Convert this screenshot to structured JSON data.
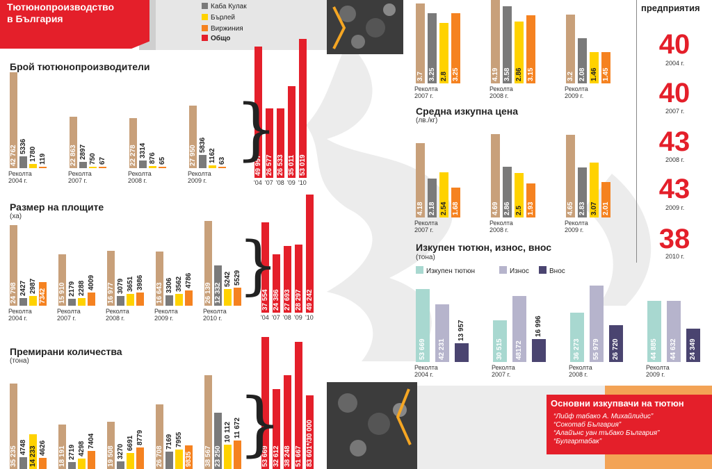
{
  "banner": {
    "title_line1": "Тютюнопроизводство",
    "title_line2": "в България"
  },
  "legend": {
    "items": [
      {
        "label": "Каба Кулак",
        "color": "#7a7a7a"
      },
      {
        "label": "Бърлей",
        "color": "#ffd200"
      },
      {
        "label": "Виржиния",
        "color": "#f58220"
      },
      {
        "label": "Общо",
        "color": "#e41f2a"
      }
    ]
  },
  "colors": {
    "total": "#c8a07a",
    "kaba": "#7a7a7a",
    "burley": "#ffd200",
    "virginia": "#f58220",
    "red": "#e41f2a",
    "bought": "#a8d8d0",
    "export": "#b6b4cc",
    "import": "#4a4470"
  },
  "section_titles": {
    "producers": "Брой тютюнопроизводители",
    "areas": "Размер на площите",
    "areas_unit": "(ха)",
    "premium": "Премирани количества",
    "premium_unit": "(тона)",
    "avg_price": "Средна изкупна цена",
    "avg_price_unit": "(лв./кг)",
    "trade": "Изкупен тютюн, износ, внос",
    "trade_unit": "(тона)",
    "enterprises": "предприятия"
  },
  "trade_legend": [
    "Изкупен тютюн",
    "Износ",
    "Внос"
  ],
  "enterprises": [
    {
      "value": "40",
      "year": "2004 г."
    },
    {
      "value": "40",
      "year": "2007 г."
    },
    {
      "value": "43",
      "year": "2008 г."
    },
    {
      "value": "43",
      "year": "2009 г."
    },
    {
      "value": "38",
      "year": "2010 г."
    }
  ],
  "buyers": {
    "title": "Основни изкупвачи на тютюн",
    "names": [
      "“Лийф табако А. Михайлидис”",
      "“Сокотаб България”",
      "“Алайънс уан тъбако България”",
      "“Булгартабак”"
    ]
  },
  "chart_data": [
    {
      "id": "producers",
      "type": "bar",
      "title": "Брой тютюнопроизводители",
      "categories": [
        [
          "Реколта",
          "2004 г."
        ],
        [
          "Реколта",
          "2007 г."
        ],
        [
          "Реколта",
          "2008 г."
        ],
        [
          "Реколта",
          "2009 г."
        ]
      ],
      "series": [
        {
          "key": "total",
          "values": [
            42762,
            22863,
            22278,
            27950
          ]
        },
        {
          "key": "kaba",
          "name": "Каба Кулак",
          "values": [
            5336,
            2897,
            3314,
            5836
          ]
        },
        {
          "key": "burley",
          "name": "Бърлей",
          "values": [
            1780,
            750,
            876,
            1162
          ]
        },
        {
          "key": "virginia",
          "name": "Виржиния",
          "values": [
            119,
            67,
            65,
            63
          ]
        }
      ],
      "labels": [
        [
          "42 762",
          "5336",
          "1780",
          "119"
        ],
        [
          "22 863",
          "2897",
          "750",
          "67"
        ],
        [
          "22 278",
          "3314",
          "876",
          "65"
        ],
        [
          "27 950",
          "5836",
          "1162",
          "63"
        ]
      ]
    },
    {
      "id": "producers_total",
      "type": "bar",
      "categories": [
        "'04",
        "'07",
        "'08",
        "'09",
        "'10"
      ],
      "values": [
        49997,
        26577,
        26533,
        35011,
        53019
      ],
      "labels": [
        "49 997",
        "26 577",
        "26 533",
        "35 011",
        "53 019"
      ]
    },
    {
      "id": "areas",
      "type": "bar",
      "title": "Размер на площите",
      "ylabel": "(ха)",
      "categories": [
        [
          "Реколта",
          "2004 г."
        ],
        [
          "Реколта",
          "2007 г."
        ],
        [
          "Реколта",
          "2008 г."
        ],
        [
          "Реколта",
          "2009 г."
        ],
        [
          "Реколта",
          "2010 г."
        ]
      ],
      "series": [
        {
          "key": "total",
          "values": [
            24798,
            15910,
            16977,
            16643,
            26139
          ]
        },
        {
          "key": "kaba",
          "name": "Каба Кулак",
          "values": [
            2427,
            2179,
            3079,
            3306,
            12332
          ]
        },
        {
          "key": "burley",
          "name": "Бърлей",
          "values": [
            2987,
            2288,
            3651,
            3562,
            5242
          ]
        },
        {
          "key": "virginia",
          "name": "Виржиния",
          "values": [
            7342,
            4009,
            3986,
            4786,
            5529
          ]
        }
      ],
      "labels": [
        [
          "24 798",
          "2427",
          "2987",
          "7342"
        ],
        [
          "15 910",
          "2179",
          "2288",
          "4009"
        ],
        [
          "16 977",
          "3079",
          "3651",
          "3986"
        ],
        [
          "16 643",
          "3306",
          "3562",
          "4786"
        ],
        [
          "26 139",
          "12 332",
          "5242",
          "5529"
        ]
      ]
    },
    {
      "id": "areas_total",
      "type": "bar",
      "categories": [
        "'04",
        "'07",
        "'08",
        "'09",
        "'10"
      ],
      "values": [
        37554,
        24386,
        27693,
        28297,
        49242
      ],
      "labels": [
        "37 554",
        "24 386",
        "27 693",
        "28 297",
        "49 242"
      ]
    },
    {
      "id": "premium",
      "type": "bar",
      "title": "Премирани количества",
      "ylabel": "(тона)",
      "categories": [
        [
          "",
          ""
        ],
        [
          "",
          ""
        ],
        [
          "",
          ""
        ],
        [
          "",
          ""
        ],
        [
          "",
          ""
        ]
      ],
      "series": [
        {
          "key": "total",
          "values": [
            35235,
            18191,
            19508,
            26708,
            38567
          ]
        },
        {
          "key": "kaba",
          "name": "Каба Кулак",
          "values": [
            4748,
            2719,
            3270,
            7169,
            23250
          ]
        },
        {
          "key": "burley",
          "name": "Бърлей",
          "values": [
            14233,
            4298,
            6691,
            7955,
            10112
          ]
        },
        {
          "key": "virginia",
          "name": "Виржиния",
          "values": [
            4626,
            7404,
            8779,
            9835,
            11672
          ]
        }
      ],
      "labels": [
        [
          "35 235",
          "4748",
          "14 233",
          "4626"
        ],
        [
          "18 191",
          "2719",
          "4298",
          "7404"
        ],
        [
          "19 508",
          "3270",
          "6691",
          "8779"
        ],
        [
          "26 708",
          "7169",
          "7955",
          "9835"
        ],
        [
          "38 567",
          "23 250",
          "10 112",
          "11 672"
        ]
      ]
    },
    {
      "id": "premium_total",
      "type": "bar",
      "values": [
        53669,
        32612,
        38248,
        51667,
        30000
      ],
      "labels": [
        "53 669",
        "32 612",
        "38 248",
        "51 667",
        "83 601*/30 000"
      ]
    },
    {
      "id": "top_price",
      "type": "bar",
      "categories": [
        [
          "Реколта",
          "2007 г."
        ],
        [
          "Реколта",
          "2008 г."
        ],
        [
          "Реколта",
          "2009 г."
        ]
      ],
      "series": [
        {
          "key": "total",
          "values": [
            3.7,
            4.19,
            3.2
          ]
        },
        {
          "key": "kaba",
          "name": "Каба Кулак",
          "values": [
            3.25,
            3.58,
            2.08
          ]
        },
        {
          "key": "burley",
          "name": "Бърлей",
          "values": [
            2.8,
            2.86,
            1.46
          ]
        },
        {
          "key": "virginia",
          "name": "Виржиния",
          "values": [
            3.25,
            3.15,
            1.45
          ]
        }
      ],
      "labels": [
        [
          "3.7",
          "3.25",
          "2.8",
          "3.25"
        ],
        [
          "4.19",
          "3.58",
          "2.86",
          "3.15"
        ],
        [
          "3.2",
          "2.08",
          "1.46",
          "1.45"
        ]
      ]
    },
    {
      "id": "avg_price",
      "type": "bar",
      "title": "Средна изкупна цена",
      "ylabel": "(лв./кг)",
      "categories": [
        [
          "Реколта",
          "2007 г."
        ],
        [
          "Реколта",
          "2008 г."
        ],
        [
          "Реколта",
          "2009 г."
        ]
      ],
      "series": [
        {
          "key": "total",
          "values": [
            4.18,
            4.69,
            4.65
          ]
        },
        {
          "key": "kaba",
          "name": "Каба Кулак",
          "values": [
            2.18,
            2.86,
            2.83
          ]
        },
        {
          "key": "burley",
          "name": "Бърлей",
          "values": [
            2.54,
            2.5,
            3.07
          ]
        },
        {
          "key": "virginia",
          "name": "Виржиния",
          "values": [
            1.68,
            1.93,
            2.01
          ]
        }
      ],
      "labels": [
        [
          "4.18",
          "2.18",
          "2.54",
          "1.68"
        ],
        [
          "4.69",
          "2.86",
          "2.5",
          "1.93"
        ],
        [
          "4.65",
          "2.83",
          "3.07",
          "2.01"
        ]
      ]
    },
    {
      "id": "trade",
      "type": "bar",
      "title": "Изкупен тютюн, износ, внос",
      "ylabel": "(тона)",
      "categories": [
        [
          "Реколта",
          "2004 г."
        ],
        [
          "Реколта",
          "2007 г."
        ],
        [
          "Реколта",
          "2008 г."
        ],
        [
          "Реколта",
          "2009 г."
        ]
      ],
      "series": [
        {
          "key": "bought",
          "name": "Изкупен тютюн",
          "values": [
            53669,
            30515,
            36273,
            44885
          ]
        },
        {
          "key": "export",
          "name": "Износ",
          "values": [
            42231,
            48172,
            55979,
            44632
          ]
        },
        {
          "key": "import",
          "name": "Внос",
          "values": [
            13957,
            16996,
            26720,
            24349
          ]
        }
      ],
      "labels": [
        [
          "53 669",
          "42 231",
          "13 957"
        ],
        [
          "30 515",
          "48172",
          "16 996"
        ],
        [
          "36 273",
          "55 979",
          "26 720"
        ],
        [
          "44 885",
          "44 632",
          "24 349"
        ]
      ]
    }
  ]
}
